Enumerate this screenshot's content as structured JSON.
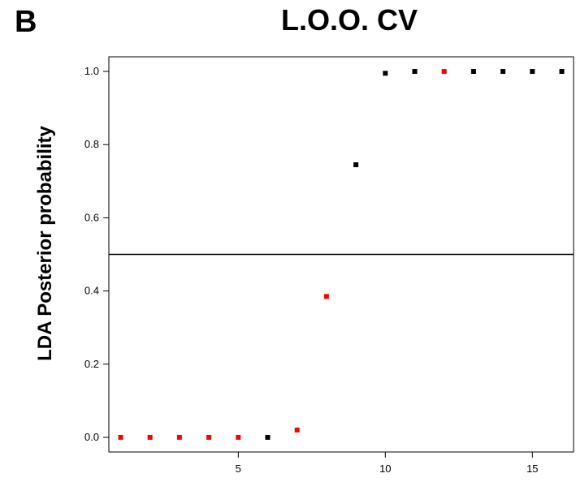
{
  "panel_letter": "B",
  "chart_data": {
    "type": "scatter",
    "title": "L.O.O. CV",
    "xlabel": "",
    "ylabel": "LDA Posterior probability",
    "xlim": [
      0.6,
      16.4
    ],
    "ylim": [
      -0.04,
      1.04
    ],
    "xticks": [
      5,
      10,
      15
    ],
    "yticks": [
      0.0,
      0.2,
      0.4,
      0.6,
      0.8,
      1.0
    ],
    "ytick_labels": [
      "0.0",
      "0.2",
      "0.4",
      "0.6",
      "0.8",
      "1.0"
    ],
    "threshold": 0.5,
    "grid": false,
    "colors": {
      "red": "#ff0000",
      "black": "#000000"
    },
    "points": [
      {
        "x": 1,
        "y": 0.0,
        "color": "red"
      },
      {
        "x": 2,
        "y": 0.0,
        "color": "red"
      },
      {
        "x": 3,
        "y": 0.0,
        "color": "red"
      },
      {
        "x": 4,
        "y": 0.0,
        "color": "red"
      },
      {
        "x": 5,
        "y": 0.0,
        "color": "red"
      },
      {
        "x": 6,
        "y": 0.0,
        "color": "black"
      },
      {
        "x": 7,
        "y": 0.02,
        "color": "red"
      },
      {
        "x": 8,
        "y": 0.385,
        "color": "red"
      },
      {
        "x": 9,
        "y": 0.745,
        "color": "black"
      },
      {
        "x": 10,
        "y": 0.995,
        "color": "black"
      },
      {
        "x": 11,
        "y": 1.0,
        "color": "black"
      },
      {
        "x": 12,
        "y": 1.0,
        "color": "red"
      },
      {
        "x": 13,
        "y": 1.0,
        "color": "black"
      },
      {
        "x": 14,
        "y": 1.0,
        "color": "black"
      },
      {
        "x": 15,
        "y": 1.0,
        "color": "black"
      },
      {
        "x": 16,
        "y": 1.0,
        "color": "black"
      }
    ]
  }
}
